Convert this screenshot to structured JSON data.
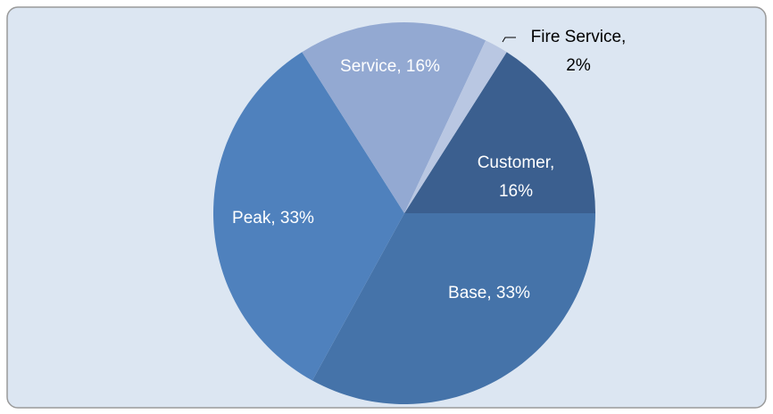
{
  "chart_data": {
    "type": "pie",
    "labels": [
      [
        "Customer,",
        "16%"
      ],
      [
        "Base, 33%"
      ],
      [
        "Peak, 33%"
      ],
      [
        "Service, 16%"
      ],
      [
        "Fire Service,",
        "2%"
      ]
    ],
    "values": [
      16,
      33,
      33,
      16,
      2
    ],
    "colors": [
      "#3b5f8f",
      "#4573a9",
      "#4f81bd",
      "#93a9d2",
      "#b9c7e2"
    ],
    "label_colors": [
      "#ffffff",
      "#ffffff",
      "#ffffff",
      "#ffffff",
      "#000000"
    ]
  }
}
